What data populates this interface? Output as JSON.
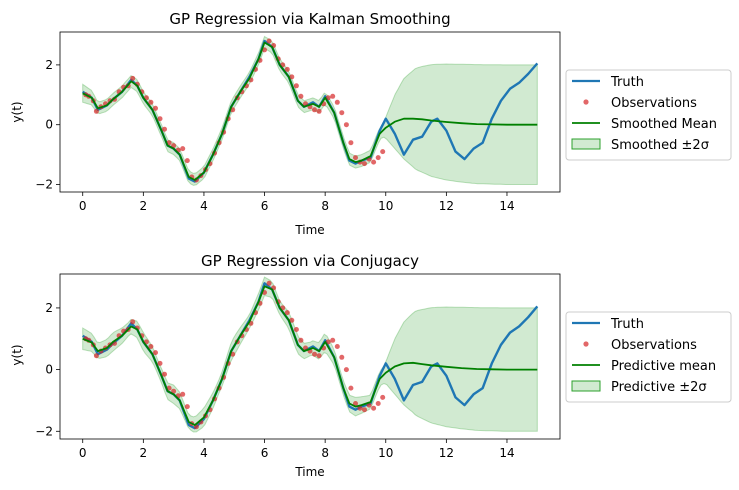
{
  "colors": {
    "truth": "#1f77b4",
    "obs": "#d62728",
    "mean": "#008000",
    "band": "#2ca02c"
  },
  "chart_data": [
    {
      "type": "line",
      "title": "GP Regression via Kalman Smoothing",
      "xlabel": "Time",
      "ylabel": "y(t)",
      "xlim": [
        -0.75,
        15.75
      ],
      "ylim": [
        -2.25,
        3.1
      ],
      "xticks": [
        0,
        2,
        4,
        6,
        8,
        10,
        12,
        14
      ],
      "yticks": [
        -2,
        0,
        2
      ],
      "grid": false,
      "legend_position": "right",
      "legend": [
        "Truth",
        "Observations",
        "Smoothed Mean",
        "Smoothed ±2σ"
      ],
      "truth": {
        "x": [
          0,
          0.3,
          0.5,
          0.8,
          1.0,
          1.3,
          1.6,
          1.8,
          2.0,
          2.3,
          2.6,
          2.8,
          3.0,
          3.2,
          3.5,
          3.7,
          4.0,
          4.3,
          4.6,
          4.9,
          5.2,
          5.5,
          5.8,
          6.0,
          6.25,
          6.5,
          6.8,
          7.1,
          7.3,
          7.6,
          7.8,
          8.0,
          8.3,
          8.6,
          8.8,
          9.0,
          9.2,
          9.5,
          9.8,
          10.0,
          10.3,
          10.6,
          10.9,
          11.2,
          11.5,
          11.7,
          12.0,
          12.3,
          12.6,
          12.9,
          13.2,
          13.5,
          13.8,
          14.1,
          14.4,
          14.7,
          15.0
        ],
        "y": [
          1.1,
          0.9,
          0.5,
          0.65,
          0.85,
          1.1,
          1.5,
          1.3,
          0.9,
          0.5,
          -0.2,
          -0.7,
          -0.8,
          -1.0,
          -1.8,
          -1.9,
          -1.6,
          -1.0,
          -0.3,
          0.6,
          1.1,
          1.6,
          2.2,
          2.8,
          2.6,
          2.0,
          1.6,
          0.8,
          0.6,
          0.75,
          0.6,
          0.95,
          0.4,
          -0.6,
          -1.2,
          -1.3,
          -1.2,
          -1.1,
          -0.2,
          0.2,
          -0.3,
          -1.0,
          -0.5,
          -0.4,
          0.1,
          0.2,
          -0.2,
          -0.9,
          -1.15,
          -0.8,
          -0.6,
          0.2,
          0.8,
          1.2,
          1.4,
          1.7,
          2.05
        ]
      },
      "observations": {
        "x": [
          0.1,
          0.2,
          0.35,
          0.45,
          0.6,
          0.75,
          0.9,
          1.05,
          1.2,
          1.35,
          1.5,
          1.65,
          1.8,
          1.95,
          2.1,
          2.25,
          2.4,
          2.55,
          2.7,
          2.85,
          3.0,
          3.15,
          3.3,
          3.45,
          3.6,
          3.75,
          3.9,
          4.05,
          4.2,
          4.35,
          4.5,
          4.65,
          4.8,
          4.95,
          5.1,
          5.25,
          5.4,
          5.55,
          5.7,
          5.85,
          6.0,
          6.15,
          6.3,
          6.45,
          6.6,
          6.75,
          6.9,
          7.05,
          7.2,
          7.35,
          7.5,
          7.65,
          7.8,
          7.95,
          8.1,
          8.25,
          8.4,
          8.55,
          8.7,
          8.85,
          9.0,
          9.15,
          9.3,
          9.45,
          9.6,
          9.75,
          9.9
        ],
        "y": [
          1.0,
          0.95,
          0.8,
          0.45,
          0.6,
          0.7,
          0.8,
          0.85,
          1.1,
          1.25,
          1.3,
          1.55,
          1.35,
          1.1,
          0.9,
          0.75,
          0.55,
          0.2,
          -0.15,
          -0.6,
          -0.7,
          -0.85,
          -0.8,
          -1.2,
          -1.75,
          -1.85,
          -1.7,
          -1.5,
          -1.3,
          -0.95,
          -0.6,
          -0.25,
          0.2,
          0.5,
          0.9,
          1.1,
          1.3,
          1.5,
          1.85,
          2.15,
          2.5,
          2.8,
          2.65,
          2.2,
          2.0,
          1.85,
          1.6,
          1.3,
          0.95,
          0.7,
          0.6,
          0.5,
          0.45,
          0.7,
          0.9,
          0.95,
          0.75,
          0.4,
          0.0,
          -0.6,
          -1.1,
          -1.25,
          -1.3,
          -1.15,
          -1.25,
          -1.1,
          -0.9
        ]
      },
      "mean": {
        "x": [
          0,
          0.3,
          0.5,
          0.8,
          1.0,
          1.3,
          1.6,
          1.8,
          2.0,
          2.3,
          2.6,
          2.8,
          3.0,
          3.2,
          3.5,
          3.7,
          4.0,
          4.3,
          4.6,
          4.9,
          5.2,
          5.5,
          5.8,
          6.0,
          6.25,
          6.5,
          6.8,
          7.1,
          7.3,
          7.6,
          7.8,
          8.0,
          8.3,
          8.6,
          8.8,
          9.0,
          9.2,
          9.5,
          9.8,
          10.0,
          10.3,
          10.6,
          10.9,
          11.2,
          11.5,
          12.0,
          12.5,
          13.0,
          13.5,
          14.0,
          15.0
        ],
        "y": [
          1.05,
          0.9,
          0.55,
          0.65,
          0.85,
          1.1,
          1.45,
          1.3,
          0.9,
          0.5,
          -0.2,
          -0.7,
          -0.8,
          -1.0,
          -1.75,
          -1.85,
          -1.6,
          -1.0,
          -0.3,
          0.6,
          1.1,
          1.55,
          2.2,
          2.75,
          2.6,
          2.0,
          1.6,
          0.8,
          0.6,
          0.7,
          0.6,
          0.9,
          0.4,
          -0.6,
          -1.15,
          -1.25,
          -1.2,
          -1.05,
          -0.3,
          -0.1,
          0.1,
          0.2,
          0.2,
          0.18,
          0.14,
          0.09,
          0.05,
          0.02,
          0.01,
          0.0,
          0.0
        ]
      },
      "band_halfwidth": {
        "x": [
          0,
          0.5,
          9.9,
          10.0,
          10.3,
          10.6,
          11.0,
          11.5,
          12.0,
          12.5,
          13.0,
          14.0,
          15.0
        ],
        "y": [
          0.3,
          0.2,
          0.2,
          0.35,
          0.9,
          1.35,
          1.7,
          1.87,
          1.94,
          1.97,
          1.99,
          2.0,
          2.0
        ]
      }
    },
    {
      "type": "line",
      "title": "GP Regression via Conjugacy",
      "xlabel": "Time",
      "ylabel": "y(t)",
      "xlim": [
        -0.75,
        15.75
      ],
      "ylim": [
        -2.25,
        3.1
      ],
      "xticks": [
        0,
        2,
        4,
        6,
        8,
        10,
        12,
        14
      ],
      "yticks": [
        -2,
        0,
        2
      ],
      "grid": false,
      "legend_position": "right",
      "legend": [
        "Truth",
        "Observations",
        "Predictive mean",
        "Predictive ±2σ"
      ],
      "truth": {
        "x": [
          0,
          0.3,
          0.5,
          0.8,
          1.0,
          1.3,
          1.6,
          1.8,
          2.0,
          2.3,
          2.6,
          2.8,
          3.0,
          3.2,
          3.5,
          3.7,
          4.0,
          4.3,
          4.6,
          4.9,
          5.2,
          5.5,
          5.8,
          6.0,
          6.25,
          6.5,
          6.8,
          7.1,
          7.3,
          7.6,
          7.8,
          8.0,
          8.3,
          8.6,
          8.8,
          9.0,
          9.2,
          9.5,
          9.8,
          10.0,
          10.3,
          10.6,
          10.9,
          11.2,
          11.5,
          11.7,
          12.0,
          12.3,
          12.6,
          12.9,
          13.2,
          13.5,
          13.8,
          14.1,
          14.4,
          14.7,
          15.0
        ],
        "y": [
          1.1,
          0.9,
          0.5,
          0.65,
          0.85,
          1.1,
          1.5,
          1.3,
          0.9,
          0.5,
          -0.2,
          -0.7,
          -0.8,
          -1.0,
          -1.8,
          -1.9,
          -1.6,
          -1.0,
          -0.3,
          0.6,
          1.1,
          1.6,
          2.2,
          2.8,
          2.6,
          2.0,
          1.6,
          0.8,
          0.6,
          0.75,
          0.6,
          0.95,
          0.4,
          -0.6,
          -1.2,
          -1.3,
          -1.2,
          -1.1,
          -0.2,
          0.2,
          -0.3,
          -1.0,
          -0.5,
          -0.4,
          0.1,
          0.2,
          -0.2,
          -0.9,
          -1.15,
          -0.8,
          -0.6,
          0.2,
          0.8,
          1.2,
          1.4,
          1.7,
          2.05
        ]
      },
      "observations": {
        "x": [
          0.1,
          0.2,
          0.35,
          0.45,
          0.6,
          0.75,
          0.9,
          1.05,
          1.2,
          1.35,
          1.5,
          1.65,
          1.8,
          1.95,
          2.1,
          2.25,
          2.4,
          2.55,
          2.7,
          2.85,
          3.0,
          3.15,
          3.3,
          3.45,
          3.6,
          3.75,
          3.9,
          4.05,
          4.2,
          4.35,
          4.5,
          4.65,
          4.8,
          4.95,
          5.1,
          5.25,
          5.4,
          5.55,
          5.7,
          5.85,
          6.0,
          6.15,
          6.3,
          6.45,
          6.6,
          6.75,
          6.9,
          7.05,
          7.2,
          7.35,
          7.5,
          7.65,
          7.8,
          7.95,
          8.1,
          8.25,
          8.4,
          8.55,
          8.7,
          8.85,
          9.0,
          9.15,
          9.3,
          9.45,
          9.6,
          9.75,
          9.9
        ],
        "y": [
          1.0,
          0.95,
          0.8,
          0.45,
          0.6,
          0.7,
          0.8,
          0.85,
          1.1,
          1.25,
          1.3,
          1.55,
          1.35,
          1.1,
          0.9,
          0.75,
          0.55,
          0.2,
          -0.15,
          -0.6,
          -0.7,
          -0.85,
          -0.8,
          -1.2,
          -1.75,
          -1.85,
          -1.7,
          -1.5,
          -1.3,
          -0.95,
          -0.6,
          -0.25,
          0.2,
          0.5,
          0.9,
          1.1,
          1.3,
          1.5,
          1.85,
          2.15,
          2.5,
          2.8,
          2.65,
          2.2,
          2.0,
          1.85,
          1.6,
          1.3,
          0.95,
          0.7,
          0.6,
          0.5,
          0.45,
          0.7,
          0.9,
          0.95,
          0.75,
          0.4,
          0.0,
          -0.6,
          -1.1,
          -1.25,
          -1.3,
          -1.15,
          -1.25,
          -1.1,
          -0.9
        ]
      },
      "mean": {
        "x": [
          0,
          0.3,
          0.5,
          0.8,
          1.0,
          1.3,
          1.6,
          1.8,
          2.0,
          2.3,
          2.6,
          2.8,
          3.0,
          3.2,
          3.5,
          3.7,
          4.0,
          4.3,
          4.6,
          4.9,
          5.2,
          5.5,
          5.8,
          6.0,
          6.25,
          6.5,
          6.8,
          7.1,
          7.3,
          7.6,
          7.8,
          8.0,
          8.3,
          8.6,
          8.8,
          9.0,
          9.2,
          9.5,
          9.8,
          10.0,
          10.3,
          10.6,
          10.9,
          11.2,
          11.5,
          12.0,
          12.5,
          13.0,
          13.5,
          14.0,
          15.0
        ],
        "y": [
          1.0,
          0.88,
          0.6,
          0.7,
          0.9,
          1.1,
          1.4,
          1.3,
          0.9,
          0.5,
          -0.2,
          -0.7,
          -0.8,
          -1.0,
          -1.7,
          -1.8,
          -1.55,
          -1.0,
          -0.3,
          0.6,
          1.1,
          1.55,
          2.2,
          2.7,
          2.6,
          2.0,
          1.6,
          0.8,
          0.6,
          0.7,
          0.6,
          0.9,
          0.4,
          -0.6,
          -1.1,
          -1.2,
          -1.15,
          -1.05,
          -0.3,
          -0.1,
          0.1,
          0.2,
          0.22,
          0.18,
          0.14,
          0.09,
          0.05,
          0.02,
          0.01,
          0.0,
          0.0
        ]
      },
      "band_halfwidth": {
        "x": [
          0,
          0.5,
          1.0,
          1.5,
          2.0,
          2.5,
          3.0,
          3.5,
          4.0,
          4.5,
          5.0,
          5.5,
          6.0,
          6.5,
          7.0,
          7.5,
          8.0,
          8.5,
          9.0,
          9.5,
          9.9,
          10.0,
          10.3,
          10.6,
          11.0,
          11.5,
          12.0,
          12.5,
          13.0,
          14.0,
          15.0
        ],
        "y": [
          0.35,
          0.25,
          0.3,
          0.22,
          0.3,
          0.22,
          0.3,
          0.22,
          0.3,
          0.22,
          0.3,
          0.22,
          0.3,
          0.22,
          0.3,
          0.22,
          0.3,
          0.22,
          0.3,
          0.22,
          0.25,
          0.35,
          0.9,
          1.35,
          1.7,
          1.87,
          1.94,
          1.97,
          1.99,
          2.0,
          2.0
        ]
      }
    }
  ]
}
